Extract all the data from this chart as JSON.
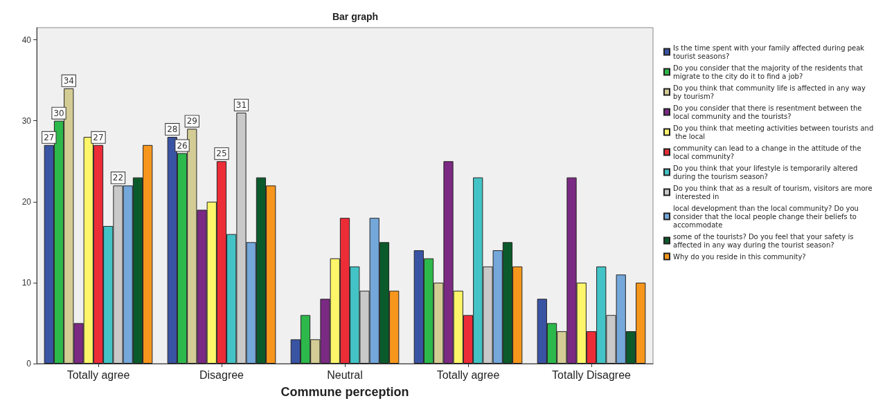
{
  "chart_data": {
    "type": "bar",
    "title": "Bar graph",
    "xlabel": "Commune perception",
    "categories": [
      "Totally agree",
      "Disagree",
      "Neutral",
      "Totally agree",
      "Totally Disagree"
    ],
    "series": [
      {
        "name": "Is the time spent with your family affected during peak tourist seasons?",
        "color": "#3a54a4",
        "values": [
          27,
          28,
          3,
          14,
          8
        ],
        "value_labels": [
          "27",
          "28",
          null,
          null,
          null
        ]
      },
      {
        "name": "Do you consider that the majority of the residents that migrate to the city do it to find a job?",
        "color": "#2db84b",
        "values": [
          30,
          26,
          6,
          13,
          5
        ],
        "value_labels": [
          "30",
          "26",
          null,
          null,
          null
        ]
      },
      {
        "name": "Do you think that community life is affected in any way by tourism?",
        "color": "#d4cc95",
        "values": [
          34,
          29,
          3,
          10,
          4
        ],
        "value_labels": [
          "34",
          "29",
          null,
          null,
          null
        ]
      },
      {
        "name": "Do you consider that there is resentment between the local community and the tourists?",
        "color": "#7b2a83",
        "values": [
          5,
          19,
          8,
          25,
          23
        ]
      },
      {
        "name": "Do you think that meeting activities between tourists and the local",
        "color": "#fdf56a",
        "values": [
          28,
          20,
          13,
          9,
          10
        ]
      },
      {
        "name": "community can lead to a change in the attitude of the local community?",
        "color": "#ec2d38",
        "values": [
          27,
          25,
          18,
          6,
          4
        ],
        "value_labels": [
          "27",
          "25",
          null,
          null,
          null
        ]
      },
      {
        "name": "Do you think that your lifestyle is temporarily altered during the tourism season?",
        "color": "#43c3c5",
        "values": [
          17,
          16,
          12,
          23,
          12
        ]
      },
      {
        "name": "Do you think that as a result of tourism, visitors are more interested in",
        "color": "#c9c9c9",
        "values": [
          22,
          31,
          9,
          12,
          6
        ],
        "value_labels": [
          "22",
          "31",
          null,
          null,
          null
        ]
      },
      {
        "name": "local development than the local community? Do you consider that the local people change their beliefs to accommodate",
        "color": "#74a7da",
        "values": [
          22,
          15,
          18,
          14,
          11
        ]
      },
      {
        "name": "some of the tourists? Do you feel that your safety is affected in any way during the tourist season?",
        "color": "#0b5a2b",
        "values": [
          23,
          23,
          15,
          15,
          4
        ]
      },
      {
        "name": "Why do you reside in this community?",
        "color": "#f7961d",
        "values": [
          27,
          22,
          9,
          12,
          10
        ]
      }
    ],
    "ylim": [
      0,
      41.5
    ],
    "yticks": [
      0,
      10,
      20,
      30,
      40
    ],
    "grid": false,
    "legend": "right"
  }
}
